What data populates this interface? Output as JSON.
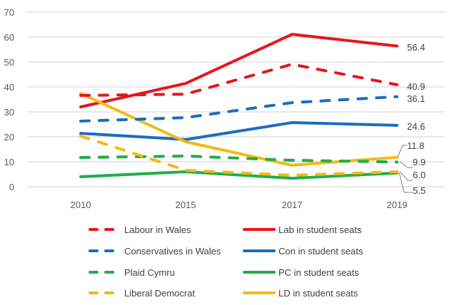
{
  "chart_data": {
    "type": "line",
    "title": "",
    "xlabel": "",
    "ylabel": "",
    "categories": [
      "2010",
      "2015",
      "2017",
      "2019"
    ],
    "ylim": [
      0,
      70
    ],
    "yticks": [
      0,
      10,
      20,
      30,
      40,
      50,
      60,
      70
    ],
    "grid": true,
    "legend_position": "bottom",
    "series": [
      {
        "name": "Labour in Wales",
        "color": "#e8151b",
        "style": "dashed",
        "values": [
          36.6,
          37.1,
          49.1,
          40.9
        ],
        "end_label": "40.9"
      },
      {
        "name": "Lab in student seats",
        "color": "#e8151b",
        "style": "solid",
        "values": [
          32.0,
          41.4,
          61.1,
          56.4
        ],
        "end_label": "56.4"
      },
      {
        "name": "Conservatives in Wales",
        "color": "#1a6dbf",
        "style": "dashed",
        "values": [
          26.3,
          27.7,
          33.7,
          36.1
        ],
        "end_label": "36.1"
      },
      {
        "name": "Con in student seats",
        "color": "#1a6dbf",
        "style": "solid",
        "values": [
          21.4,
          18.9,
          25.7,
          24.6
        ],
        "end_label": "24.6"
      },
      {
        "name": "Plaid Cymru",
        "color": "#1fae4a",
        "style": "dashed",
        "values": [
          11.7,
          12.3,
          10.6,
          9.9
        ],
        "end_label": "9.9"
      },
      {
        "name": "PC in student seats",
        "color": "#1fae4a",
        "style": "solid",
        "values": [
          4.0,
          6.0,
          3.4,
          5.5
        ],
        "end_label": "5.5"
      },
      {
        "name": "Liberal Democrat",
        "color": "#f5b914",
        "style": "dashed",
        "values": [
          20.3,
          6.6,
          4.6,
          6.0
        ],
        "end_label": "6.0"
      },
      {
        "name": "LD in student seats",
        "color": "#f5b914",
        "style": "solid",
        "values": [
          37.4,
          18.0,
          8.6,
          11.8
        ],
        "end_label": "11.8"
      }
    ]
  }
}
